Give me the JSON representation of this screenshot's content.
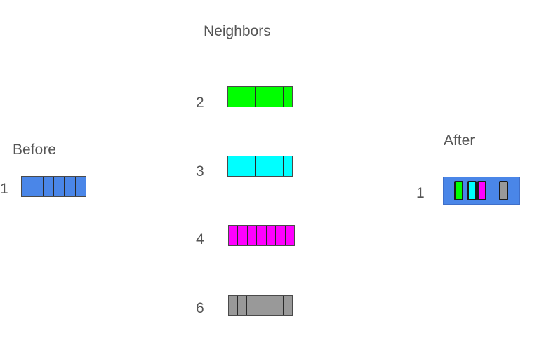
{
  "neighbors_title": "Neighbors",
  "before": {
    "title": "Before",
    "node": "1",
    "color": "#4a86e8",
    "cells": 6
  },
  "neighbors": [
    {
      "id": "2",
      "color": "#00ff00",
      "cells": 7
    },
    {
      "id": "3",
      "color": "#00ffff",
      "cells": 7
    },
    {
      "id": "4",
      "color": "#ff00ff",
      "cells": 7
    },
    {
      "id": "6",
      "color": "#999999",
      "cells": 7
    }
  ],
  "after": {
    "title": "After",
    "node": "1",
    "color": "#4a86e8",
    "slots": [
      {
        "from": "2",
        "color": "#00ff00"
      },
      {
        "from": "3",
        "color": "#00ffff"
      },
      {
        "from": "4",
        "color": "#ff00ff"
      },
      {
        "from": "6",
        "color": "#999999"
      }
    ]
  }
}
